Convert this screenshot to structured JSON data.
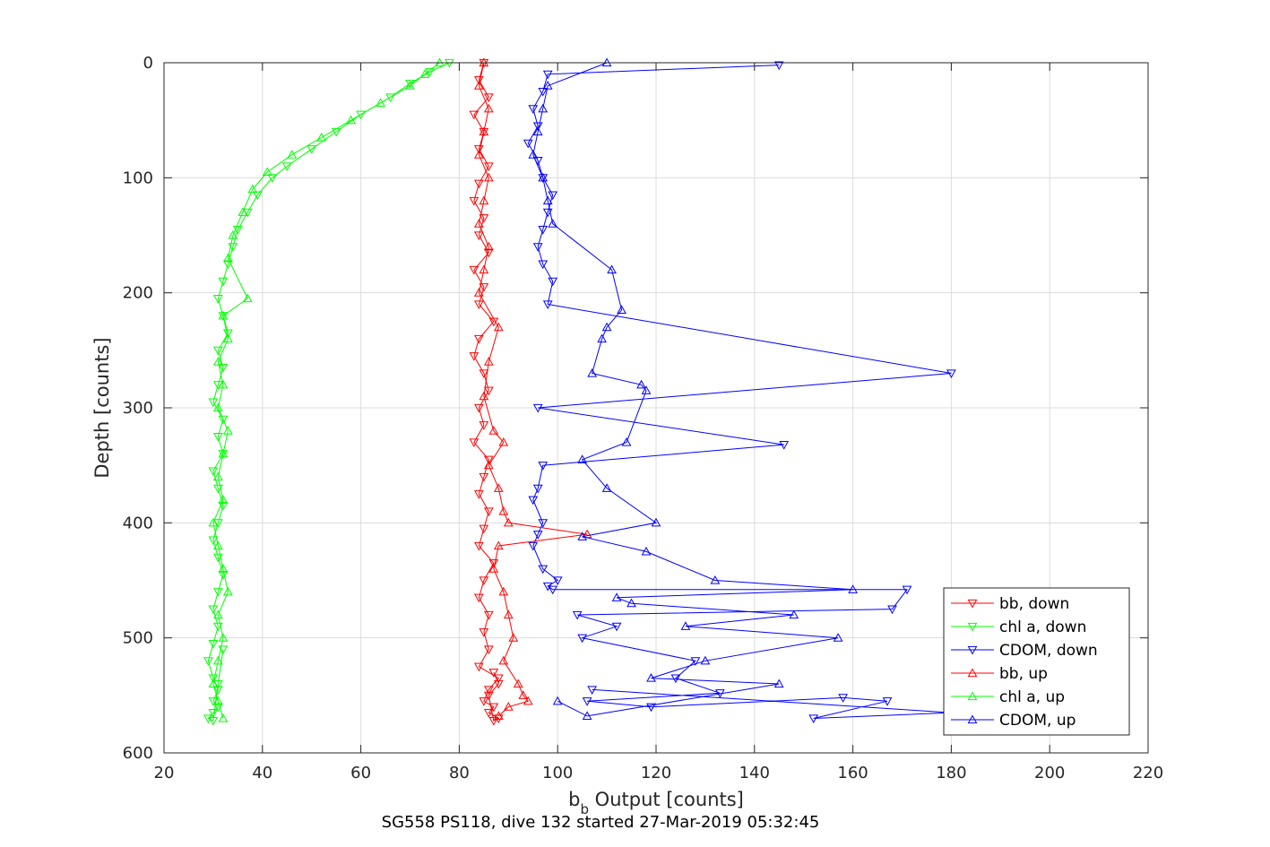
{
  "chart_data": {
    "type": "line",
    "xlabel": {
      "main": "b",
      "sub": "b",
      "rest": " Output [counts]"
    },
    "ylabel": "Depth [counts]",
    "caption": "SG558 PS118, dive 132 started 27-Mar-2019 05:32:45",
    "xlim": [
      20,
      220
    ],
    "ylim": [
      0,
      600
    ],
    "y_reversed": true,
    "xticks": [
      "20",
      "40",
      "60",
      "80",
      "100",
      "120",
      "140",
      "160",
      "180",
      "200",
      "220"
    ],
    "yticks": [
      "0",
      "100",
      "200",
      "300",
      "400",
      "500",
      "600"
    ],
    "grid": true,
    "legend_position": "bottom-right",
    "series": [
      {
        "name": "bb, down",
        "color": "#ff0000",
        "marker": "triangle-down",
        "x": [
          85,
          84,
          86,
          83,
          85,
          84,
          86,
          84,
          83,
          85,
          84,
          86,
          83,
          85,
          84,
          87,
          84,
          83,
          85,
          86,
          84,
          85,
          83,
          86,
          85,
          84,
          86,
          85,
          84,
          87,
          85,
          84,
          86,
          85,
          86,
          84,
          88,
          86,
          85,
          87,
          86,
          88,
          87,
          86,
          88,
          87
        ],
        "y": [
          0,
          15,
          30,
          45,
          60,
          75,
          90,
          105,
          120,
          135,
          150,
          165,
          180,
          195,
          210,
          225,
          240,
          255,
          270,
          285,
          300,
          315,
          330,
          345,
          360,
          375,
          390,
          405,
          420,
          435,
          450,
          465,
          480,
          495,
          510,
          525,
          535,
          545,
          555,
          560,
          565,
          570,
          572,
          550,
          540,
          530
        ]
      },
      {
        "name": "chl a, down",
        "color": "#00ff00",
        "marker": "triangle-down",
        "x": [
          78,
          74,
          70,
          66,
          60,
          55,
          50,
          45,
          42,
          39,
          37,
          35,
          34,
          33,
          32,
          31,
          32,
          33,
          31,
          32,
          31,
          30,
          32,
          31,
          32,
          30,
          31,
          32,
          31,
          30,
          31,
          32,
          31,
          30,
          31,
          30,
          29,
          30,
          31,
          30,
          31,
          30,
          29,
          30,
          31,
          32
        ],
        "y": [
          0,
          8,
          18,
          30,
          45,
          60,
          75,
          90,
          100,
          115,
          130,
          145,
          160,
          175,
          190,
          205,
          220,
          235,
          250,
          265,
          280,
          295,
          310,
          325,
          340,
          355,
          370,
          385,
          400,
          415,
          430,
          445,
          460,
          475,
          490,
          505,
          520,
          535,
          545,
          555,
          560,
          565,
          570,
          572,
          540,
          510
        ]
      },
      {
        "name": "CDOM, down",
        "color": "#0000ff",
        "marker": "triangle-down",
        "x": [
          145,
          98,
          97,
          95,
          96,
          94,
          96,
          97,
          99,
          98,
          97,
          96,
          97,
          99,
          98,
          180,
          96,
          146,
          97,
          96,
          95,
          97,
          96,
          95,
          97,
          100,
          98,
          99,
          171,
          168,
          104,
          112,
          105,
          128,
          124,
          133,
          106,
          119,
          158,
          167,
          152,
          180,
          107
        ],
        "y": [
          2,
          10,
          25,
          40,
          55,
          70,
          85,
          100,
          115,
          130,
          145,
          160,
          175,
          190,
          210,
          270,
          300,
          332,
          350,
          370,
          380,
          400,
          410,
          420,
          440,
          450,
          455,
          458,
          458,
          475,
          480,
          490,
          500,
          520,
          535,
          548,
          555,
          560,
          552,
          555,
          570,
          565,
          545
        ]
      },
      {
        "name": "bb, up",
        "color": "#ff0000",
        "marker": "triangle-up",
        "x": [
          85,
          84,
          86,
          85,
          84,
          86,
          85,
          84,
          86,
          85,
          84,
          88,
          86,
          85,
          87,
          89,
          86,
          88,
          89,
          90,
          106,
          88,
          87,
          89,
          90,
          91,
          89,
          92,
          93,
          94,
          90,
          88
        ],
        "y": [
          0,
          20,
          40,
          60,
          80,
          100,
          120,
          140,
          160,
          180,
          200,
          230,
          260,
          290,
          320,
          330,
          350,
          370,
          390,
          400,
          410,
          420,
          440,
          460,
          480,
          500,
          520,
          540,
          550,
          555,
          560,
          568
        ]
      },
      {
        "name": "chl a, up",
        "color": "#00ff00",
        "marker": "triangle-up",
        "x": [
          76,
          73,
          70,
          64,
          58,
          52,
          46,
          41,
          38,
          36,
          34,
          33,
          37,
          32,
          33,
          31,
          32,
          31,
          33,
          32,
          31,
          32,
          30,
          31,
          32,
          33,
          31,
          32,
          31,
          30,
          31,
          32
        ],
        "y": [
          0,
          10,
          20,
          35,
          50,
          65,
          80,
          95,
          110,
          130,
          150,
          170,
          205,
          220,
          240,
          260,
          280,
          300,
          320,
          340,
          360,
          380,
          400,
          420,
          440,
          460,
          480,
          500,
          520,
          540,
          555,
          570
        ]
      },
      {
        "name": "CDOM, up",
        "color": "#0000ff",
        "marker": "triangle-up",
        "x": [
          110,
          98,
          97,
          96,
          95,
          97,
          98,
          99,
          111,
          113,
          110,
          109,
          107,
          117,
          118,
          114,
          105,
          110,
          120,
          105,
          118,
          132,
          160,
          112,
          115,
          148,
          126,
          157,
          130,
          119,
          145,
          106,
          100
        ],
        "y": [
          0,
          20,
          40,
          60,
          80,
          100,
          120,
          140,
          180,
          215,
          230,
          240,
          270,
          280,
          285,
          330,
          345,
          370,
          400,
          412,
          425,
          450,
          458,
          465,
          470,
          480,
          490,
          500,
          520,
          535,
          540,
          568,
          555
        ]
      }
    ]
  }
}
